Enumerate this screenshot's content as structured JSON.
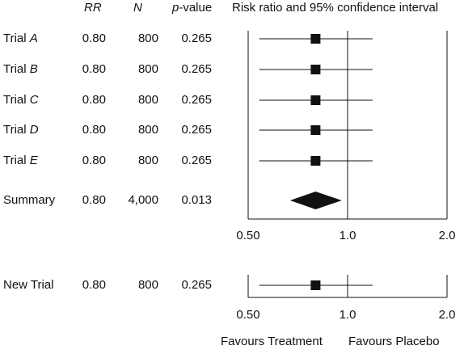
{
  "header": {
    "rr": "RR",
    "n": "N",
    "p_italic": "p",
    "p_suffix": "-value",
    "plot_title": "Risk ratio and 95% confidence interval"
  },
  "chart_data": [
    {
      "type": "forest",
      "title": "Risk ratio and 95% confidence interval",
      "x_scale": "log",
      "xlim": [
        0.5,
        2.0
      ],
      "reference_line": 1.0,
      "x_ticks": [
        "0.50",
        "1.0",
        "2.0"
      ],
      "rows": [
        {
          "label_prefix": "Trial ",
          "label_italic": "A",
          "rr": "0.80",
          "n": "800",
          "p": "0.265",
          "estimate": 0.8,
          "ci": [
            0.54,
            1.19
          ],
          "marker": "square"
        },
        {
          "label_prefix": "Trial ",
          "label_italic": "B",
          "rr": "0.80",
          "n": "800",
          "p": "0.265",
          "estimate": 0.8,
          "ci": [
            0.54,
            1.19
          ],
          "marker": "square"
        },
        {
          "label_prefix": "Trial ",
          "label_italic": "C",
          "rr": "0.80",
          "n": "800",
          "p": "0.265",
          "estimate": 0.8,
          "ci": [
            0.54,
            1.19
          ],
          "marker": "square"
        },
        {
          "label_prefix": "Trial ",
          "label_italic": "D",
          "rr": "0.80",
          "n": "800",
          "p": "0.265",
          "estimate": 0.8,
          "ci": [
            0.54,
            1.19
          ],
          "marker": "square"
        },
        {
          "label_prefix": "Trial ",
          "label_italic": "E",
          "rr": "0.80",
          "n": "800",
          "p": "0.265",
          "estimate": 0.8,
          "ci": [
            0.54,
            1.19
          ],
          "marker": "square"
        },
        {
          "label_prefix": "Summary",
          "label_italic": "",
          "rr": "0.80",
          "n": "4,000",
          "p": "0.013",
          "estimate": 0.8,
          "ci": [
            0.67,
            0.96
          ],
          "marker": "diamond"
        }
      ]
    },
    {
      "type": "forest",
      "x_scale": "log",
      "xlim": [
        0.5,
        2.0
      ],
      "reference_line": 1.0,
      "x_ticks": [
        "0.50",
        "1.0",
        "2.0"
      ],
      "rows": [
        {
          "label_prefix": "New Trial",
          "label_italic": "",
          "rr": "0.80",
          "n": "800",
          "p": "0.265",
          "estimate": 0.8,
          "ci": [
            0.54,
            1.19
          ],
          "marker": "square"
        }
      ]
    }
  ],
  "footer": {
    "favours_treatment": "Favours Treatment",
    "favours_placebo": "Favours Placebo"
  }
}
